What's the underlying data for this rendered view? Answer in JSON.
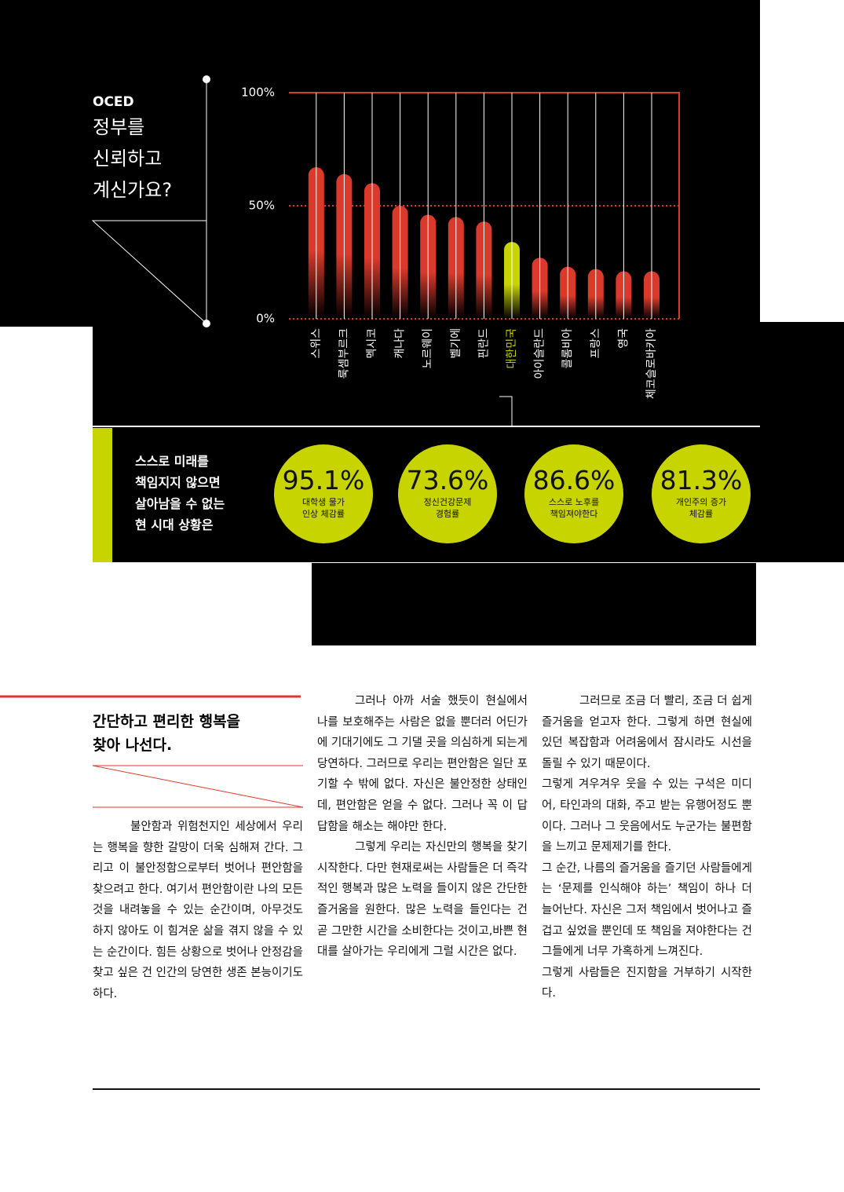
{
  "chart_data": {
    "type": "bar",
    "title": "OCED",
    "subtitle": "정부를\n신뢰하고\n계신가요?",
    "categories": [
      "스위스",
      "룩셈부르크",
      "멕시코",
      "캐나다",
      "노르웨이",
      "벨기에",
      "핀란드",
      "대한민국",
      "아이슬란드",
      "콜롬비아",
      "프랑스",
      "영국",
      "체코슬로바키아"
    ],
    "values": [
      67,
      64,
      60,
      50,
      46,
      45,
      43,
      34,
      27,
      23,
      22,
      21,
      21
    ],
    "colors": [
      "#d93a2b",
      "#d93a2b",
      "#d93a2b",
      "#d93a2b",
      "#d93a2b",
      "#d93a2b",
      "#d93a2b",
      "#c8d400",
      "#d93a2b",
      "#d93a2b",
      "#d93a2b",
      "#d93a2b",
      "#d93a2b"
    ],
    "ylim": [
      0,
      100
    ],
    "yticks": [
      {
        "value": 0,
        "label": "0%"
      },
      {
        "value": 50,
        "label": "50%"
      },
      {
        "value": 100,
        "label": "100%"
      }
    ],
    "grid": true
  },
  "stats": {
    "intro": "스스로 미래를\n책임지지 않으면\n살아남을 수 없는\n현 시대 상황은",
    "items": [
      {
        "figure": "95.1%",
        "caption": "대학생 물가\n인상 체감률"
      },
      {
        "figure": "73.6%",
        "caption": "정신건강문제\n경험률"
      },
      {
        "figure": "86.6%",
        "caption": "스스로 노후를\n책임져야한다"
      },
      {
        "figure": "81.3%",
        "caption": "개인주의 증가\n체감률"
      }
    ]
  },
  "article": {
    "heading": "간단하고 편리한 행복을\n찾아 나선다.",
    "columns": [
      [
        "불안함과 위험천지인 세상에서 우리는 행복을 향한 갈망이 더욱 심해져 간다. 그리고 이 불안정함으로부터 벗어나 편안함을 찾으려고 한다. 여기서 편안함이란 나의 모든 것을 내려놓을 수 있는 순간이며, 아무것도 하지 않아도 이 힘겨운 삶을 겪지 않을 수 있는 순간이다. 힘든 상황으로 벗어나 안정감을 찾고 싶은 건 인간의 당연한 생존 본능이기도 하다."
      ],
      [
        "그러나 아까 서술 했듯이 현실에서 나를 보호해주는 사람은 없을 뿐더러 어딘가에 기대기에도 그 기댈 곳을 의심하게 되는게 당연하다. 그러므로 우리는 편안함은 일단 포기할 수 밖에 없다. 자신은 불안정한 상태인데, 편안함은 얻을 수 없다. 그러나 꼭 이 답답함을 해소는 해야만 한다.",
        "그렇게 우리는 자신만의 행복을 찾기 시작한다. 다만 현재로써는 사람들은 더 즉각적인 행복과 많은 노력을 들이지 않은 간단한 즐거움을 원한다. 많은 노력을 들인다는 건 곧 그만한 시간을 소비한다는 것이고,바쁜 현대를 살아가는 우리에게 그럴 시간은 없다."
      ],
      [
        "그러므로 조금 더 빨리, 조금 더 쉽게 즐거움을 얻고자 한다. 그렇게 하면 현실에 있던 복잡함과 어려움에서 잠시라도 시선을 돌릴 수 있기 때문이다.",
        "그렇게 겨우겨우  웃을 수 있는 구석은 미디어, 타인과의 대화, 주고 받는 유행어정도 뿐이다. 그러나 그 웃음에서도 누군가는 불편함을 느끼고 문제제기를 한다.",
        "그 순간, 나름의 즐거움을 즐기던 사람들에게는 ‘문제를 인식해야 하는’ 책임이 하나 더 늘어난다. 자신은 그저 책임에서 벗어나고 즐겁고 싶었을 뿐인데 또 책임을 져야한다는 건 그들에게 너무 가혹하게 느껴진다.",
        "그렇게 사람들은 진지함을 거부하기 시작한다."
      ]
    ]
  }
}
